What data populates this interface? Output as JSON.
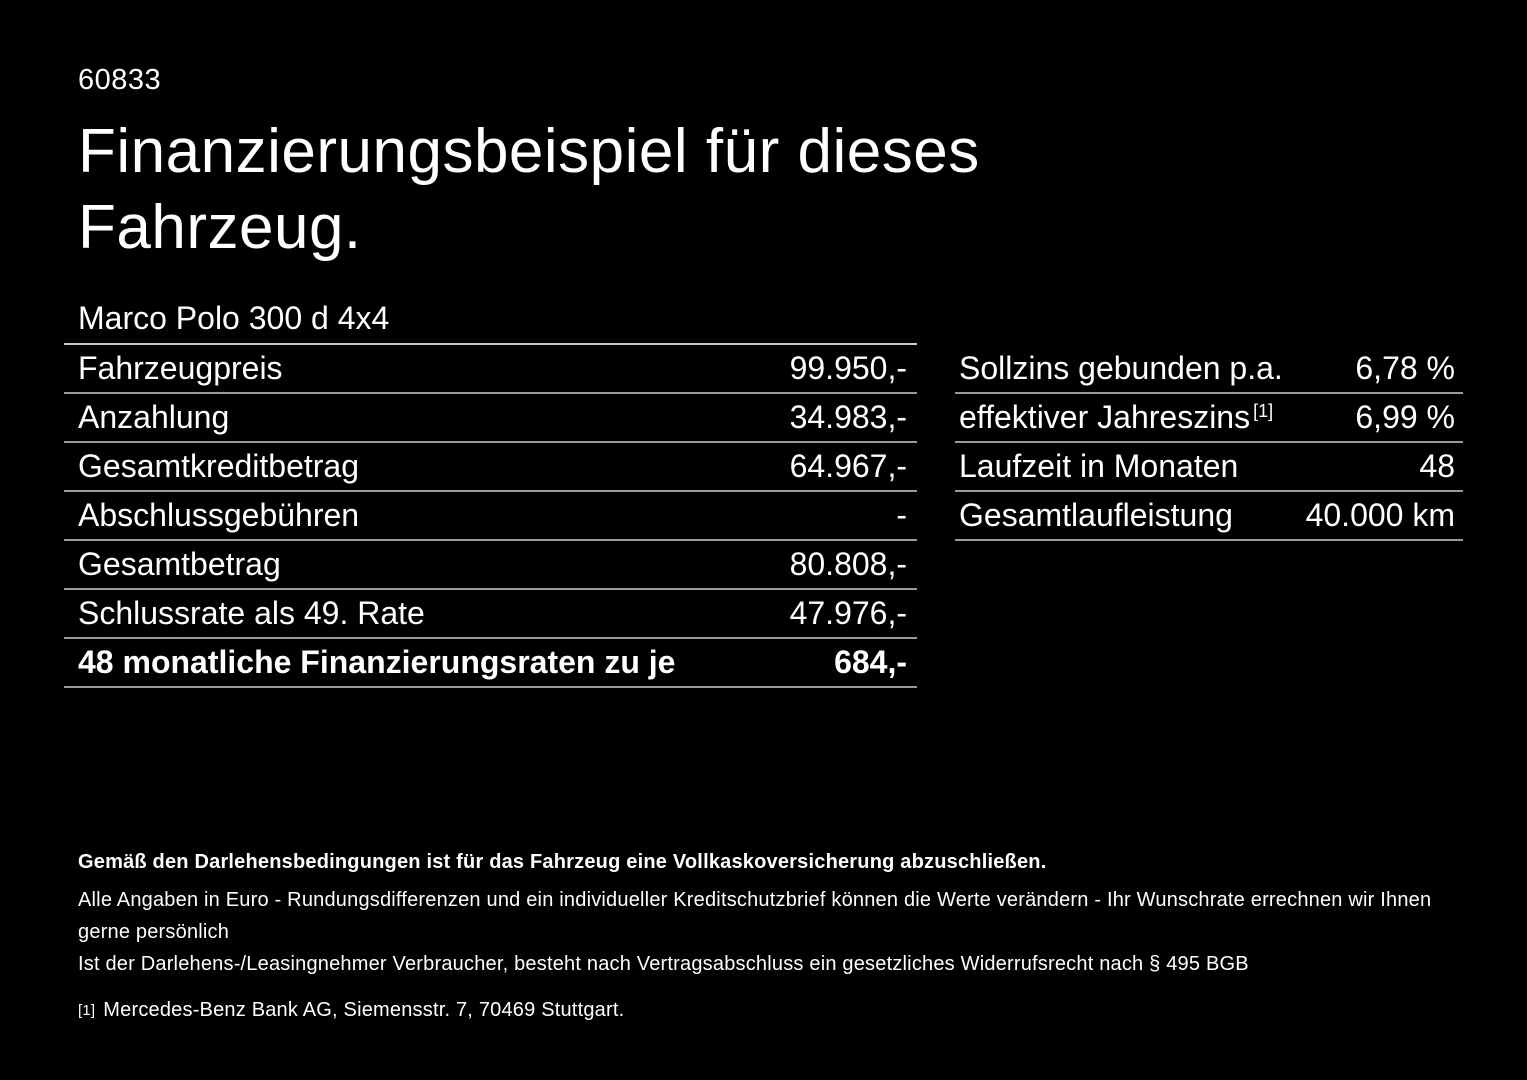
{
  "page": {
    "listing_id": "60833",
    "title_line1": "Finanzierungsbeispiel für dieses",
    "title_line2": "Fahrzeug.",
    "vehicle_model": "Marco Polo 300 d 4x4"
  },
  "finance_table": {
    "rows": [
      {
        "label": "Fahrzeugpreis",
        "value": "99.950,-"
      },
      {
        "label": "Anzahlung",
        "value": "34.983,-"
      },
      {
        "label": "Gesamtkreditbetrag",
        "value": "64.967,-"
      },
      {
        "label": "Abschlussgebühren",
        "value": "-"
      },
      {
        "label": "Gesamtbetrag",
        "value": "80.808,-"
      },
      {
        "label": "Schlussrate als 49. Rate",
        "value": "47.976,-"
      },
      {
        "label": "48 monatliche Finanzierungsraten zu je",
        "value": "684,-"
      }
    ]
  },
  "conditions_table": {
    "rows": [
      {
        "label": "Sollzins gebunden p.a.",
        "value": "6,78 %"
      },
      {
        "label": "effektiver Jahreszins",
        "footnote_marker": "[1]",
        "value": "6,99 %"
      },
      {
        "label": "Laufzeit in Monaten",
        "value": "48"
      },
      {
        "label": "Gesamtlaufleistung",
        "value": "40.000 km"
      }
    ]
  },
  "footnotes": {
    "insurance_note": "Gemäß den Darlehensbedingungen ist für das Fahrzeug eine Vollkaskoversicherung abzuschließen.",
    "euro_note": "Alle Angaben in Euro - Rundungsdifferenzen und ein individueller Kreditschutzbrief können die Werte verändern - Ihr Wunschrate errechnen wir Ihnen gerne persönlich",
    "withdrawal_note": "Ist der Darlehens-/Leasingnehmer Verbraucher, besteht nach Vertragsabschluss ein gesetzliches Widerrufsrecht nach § 495 BGB",
    "bank_marker": "[1]",
    "bank_note": "Mercedes-Benz Bank AG, Siemensstr. 7, 70469 Stuttgart."
  },
  "colors": {
    "background": "#000000",
    "text": "#ffffff",
    "divider": "#999999",
    "header_divider": "#c9c9c9"
  }
}
